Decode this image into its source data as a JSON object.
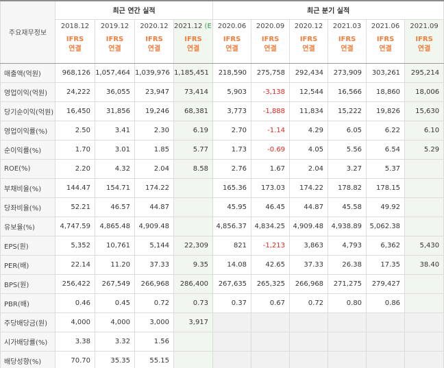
{
  "header": {
    "label": "주요재무정보",
    "annual_group": "최근 연간 실적",
    "quarter_group": "최근 분기 실적",
    "annual_periods": [
      "2018.12",
      "2019.12",
      "2020.12",
      "2021.12"
    ],
    "estimate_mark": "(E)",
    "quarter_periods": [
      "2020.06",
      "2020.09",
      "2020.12",
      "2021.03",
      "2021.06",
      "2021.09"
    ],
    "ifrs_top": "IFRS",
    "ifrs_bottom": "연결"
  },
  "rows": [
    {
      "label": "매출액(억원)",
      "values": [
        "968,126",
        "1,057,464",
        "1,039,976",
        "1,185,451",
        "218,590",
        "275,758",
        "292,434",
        "273,909",
        "303,261",
        "295,214"
      ],
      "neg": []
    },
    {
      "label": "영업이익(억원)",
      "values": [
        "24,222",
        "36,055",
        "23,947",
        "73,414",
        "5,903",
        "-3,138",
        "12,544",
        "16,566",
        "18,860",
        "18,006"
      ],
      "neg": [
        5
      ]
    },
    {
      "label": "당기순이익(억원)",
      "values": [
        "16,450",
        "31,856",
        "19,246",
        "68,381",
        "3,773",
        "-1,888",
        "11,834",
        "15,222",
        "19,826",
        "15,630"
      ],
      "neg": [
        5
      ]
    },
    {
      "label": "영업이익률(%)",
      "values": [
        "2.50",
        "3.41",
        "2.30",
        "6.19",
        "2.70",
        "-1.14",
        "4.29",
        "6.05",
        "6.22",
        "6.10"
      ],
      "neg": [
        5
      ]
    },
    {
      "label": "순이익률(%)",
      "values": [
        "1.70",
        "3.01",
        "1.85",
        "5.77",
        "1.73",
        "-0.69",
        "4.05",
        "5.56",
        "6.54",
        "5.29"
      ],
      "neg": [
        5
      ]
    },
    {
      "label": "ROE(%)",
      "values": [
        "2.20",
        "4.32",
        "2.04",
        "8.58",
        "2.76",
        "1.67",
        "2.04",
        "3.27",
        "5.37",
        ""
      ],
      "neg": []
    },
    {
      "label": "부채비율(%)",
      "values": [
        "144.47",
        "154.71",
        "174.22",
        "",
        "165.36",
        "173.03",
        "174.22",
        "178.82",
        "178.15",
        ""
      ],
      "neg": []
    },
    {
      "label": "당좌비율(%)",
      "values": [
        "52.21",
        "46.57",
        "44.87",
        "",
        "45.95",
        "46.45",
        "44.87",
        "45.58",
        "49.92",
        ""
      ],
      "neg": []
    },
    {
      "label": "유보율(%)",
      "values": [
        "4,747.59",
        "4,865.48",
        "4,909.48",
        "",
        "4,856.37",
        "4,834.25",
        "4,909.48",
        "4,938.89",
        "5,062.38",
        ""
      ],
      "neg": []
    },
    {
      "label": "EPS(원)",
      "values": [
        "5,352",
        "10,761",
        "5,144",
        "22,309",
        "821",
        "-1,213",
        "3,863",
        "4,793",
        "6,362",
        "5,430"
      ],
      "neg": [
        5
      ]
    },
    {
      "label": "PER(배)",
      "values": [
        "22.14",
        "11.20",
        "37.33",
        "9.35",
        "14.08",
        "42.65",
        "37.33",
        "26.38",
        "17.35",
        "38.40"
      ],
      "neg": []
    },
    {
      "label": "BPS(원)",
      "values": [
        "256,422",
        "267,549",
        "266,968",
        "286,400",
        "267,635",
        "265,325",
        "266,968",
        "271,275",
        "279,427",
        ""
      ],
      "neg": []
    },
    {
      "label": "PBR(배)",
      "values": [
        "0.46",
        "0.45",
        "0.72",
        "0.73",
        "0.37",
        "0.67",
        "0.72",
        "0.80",
        "0.86",
        ""
      ],
      "neg": []
    },
    {
      "label": "주당배당금(원)",
      "values": [
        "4,000",
        "4,000",
        "3,000",
        "3,917",
        "",
        "",
        "",
        "",
        "",
        ""
      ],
      "neg": []
    },
    {
      "label": "시가배당률(%)",
      "values": [
        "3.38",
        "3.32",
        "1.56",
        "",
        "",
        "",
        "",
        "",
        "",
        ""
      ],
      "neg": []
    },
    {
      "label": "배당성향(%)",
      "values": [
        "70.70",
        "35.35",
        "55.15",
        "",
        "",
        "",
        "",
        "",
        "",
        ""
      ],
      "neg": []
    }
  ],
  "colors": {
    "negative": "#e0261d",
    "ifrs": "#f07d3c",
    "estimate_bg": "#f1f7ee",
    "estimate_text": "#2d9a4f"
  }
}
